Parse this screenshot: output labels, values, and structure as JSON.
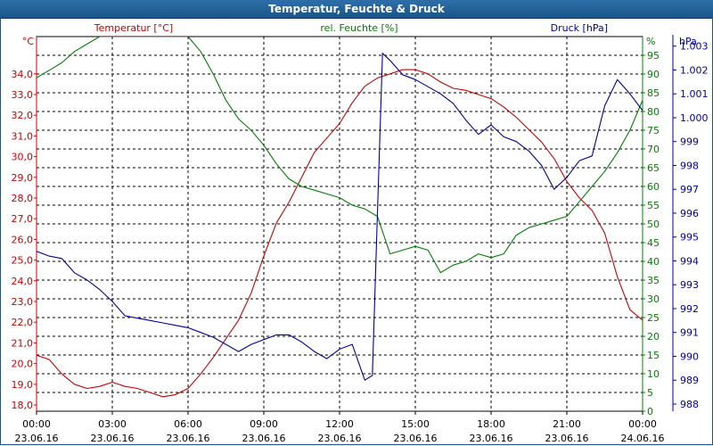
{
  "window": {
    "title": "Temperatur, Feuchte & Druck"
  },
  "colors": {
    "temperature": "#cc0000",
    "humidity": "#008000",
    "pressure": "#0000a0",
    "grid": "#000000",
    "title_bar": "#1b5488"
  },
  "chart_data": {
    "type": "line",
    "title": "Temperatur, Feuchte & Druck",
    "grid": true,
    "x_ticks": [
      {
        "time": "00:00",
        "date": "23.06.16"
      },
      {
        "time": "03:00",
        "date": "23.06.16"
      },
      {
        "time": "06:00",
        "date": "23.06.16"
      },
      {
        "time": "09:00",
        "date": "23.06.16"
      },
      {
        "time": "12:00",
        "date": "23.06.16"
      },
      {
        "time": "15:00",
        "date": "23.06.16"
      },
      {
        "time": "18:00",
        "date": "23.06.16"
      },
      {
        "time": "21:00",
        "date": "23.06.16"
      },
      {
        "time": "00:00",
        "date": "24.06.16"
      }
    ],
    "axes": {
      "temperature": {
        "label": "Temperatur [°C]",
        "unit": "°C",
        "ylim": [
          17.7,
          35.8
        ],
        "ticks": [
          "18,0",
          "19,0",
          "20,0",
          "21,0",
          "22,0",
          "23,0",
          "24,0",
          "25,0",
          "26,0",
          "27,0",
          "28,0",
          "29,0",
          "30,0",
          "31,0",
          "32,0",
          "33,0",
          "34,0"
        ]
      },
      "humidity": {
        "label": "rel. Feuchte [%]",
        "unit": "%",
        "ylim": [
          0,
          100
        ],
        "ticks": [
          "0",
          "5",
          "10",
          "15",
          "20",
          "25",
          "30",
          "35",
          "40",
          "45",
          "50",
          "55",
          "60",
          "65",
          "70",
          "75",
          "80",
          "85",
          "90",
          "95"
        ]
      },
      "pressure": {
        "label": "Druck [hPa]",
        "unit": "hPa",
        "ylim": [
          987.7,
          1003.4
        ],
        "ticks": [
          "988",
          "989",
          "990",
          "991",
          "992",
          "993",
          "994",
          "995",
          "996",
          "997",
          "998",
          "999",
          "1.000",
          "1.001",
          "1.002",
          "1.003"
        ]
      }
    },
    "series": [
      {
        "name": "Temperatur [°C]",
        "axis": "temperature",
        "x": [
          0,
          0.5,
          1.0,
          1.5,
          2.0,
          2.5,
          3.0,
          3.5,
          4.0,
          4.5,
          5.0,
          5.5,
          6.0,
          6.5,
          7.0,
          7.5,
          8.0,
          8.5,
          9.0,
          9.5,
          10.0,
          10.5,
          11.0,
          11.5,
          12.0,
          12.5,
          13.0,
          13.5,
          14.0,
          14.5,
          15.0,
          15.5,
          16.0,
          16.5,
          17.0,
          17.5,
          18.0,
          18.5,
          19.0,
          19.5,
          20.0,
          20.5,
          21.0,
          21.5,
          22.0,
          22.5,
          23.0,
          23.5,
          24.0
        ],
        "y": [
          20.4,
          20.2,
          19.5,
          19.0,
          18.8,
          18.9,
          19.1,
          18.9,
          18.8,
          18.6,
          18.4,
          18.5,
          18.8,
          19.5,
          20.3,
          21.2,
          22.1,
          23.4,
          25.2,
          26.8,
          27.8,
          29.0,
          30.2,
          30.9,
          31.6,
          32.6,
          33.4,
          33.8,
          34.0,
          34.2,
          34.2,
          34.0,
          33.6,
          33.3,
          33.2,
          33.0,
          32.8,
          32.4,
          31.9,
          31.3,
          30.7,
          29.9,
          28.8,
          28.0,
          27.4,
          26.3,
          24.2,
          22.6,
          22.1
        ]
      },
      {
        "name": "rel. Feuchte [%]",
        "axis": "humidity",
        "x": [
          0,
          0.5,
          1.0,
          1.5,
          2.0,
          2.5,
          3.0,
          3.5,
          4.0,
          4.5,
          5.0,
          5.5,
          6.0,
          6.5,
          7.0,
          7.5,
          8.0,
          8.5,
          9.0,
          9.5,
          10.0,
          10.5,
          11.0,
          11.5,
          12.0,
          12.5,
          13.0,
          13.5,
          14.0,
          14.5,
          15.0,
          15.5,
          16.0,
          16.5,
          17.0,
          17.5,
          18.0,
          18.5,
          19.0,
          19.5,
          20.0,
          20.5,
          21.0,
          21.5,
          22.0,
          22.5,
          23.0,
          23.5,
          24.0
        ],
        "y": [
          89,
          91,
          93,
          96,
          98,
          100,
          100,
          100,
          100,
          100,
          100,
          100,
          100,
          96,
          90,
          83,
          78,
          75,
          71,
          66,
          62,
          60,
          59,
          58,
          57,
          55,
          54,
          52,
          42,
          43,
          44,
          43,
          37,
          39,
          40,
          42,
          41,
          42,
          47,
          49,
          50,
          51,
          52,
          56,
          60,
          64,
          69,
          75,
          83
        ]
      },
      {
        "name": "Druck [hPa]",
        "axis": "pressure",
        "x": [
          0,
          0.5,
          1.0,
          1.5,
          2.0,
          2.5,
          3.0,
          3.5,
          4.0,
          4.5,
          5.0,
          5.5,
          6.0,
          6.5,
          7.0,
          7.5,
          8.0,
          8.5,
          9.0,
          9.5,
          10.0,
          10.5,
          11.0,
          11.5,
          12.0,
          12.5,
          13.0,
          13.3,
          13.5,
          13.7,
          14.0,
          14.5,
          15.0,
          15.5,
          16.0,
          16.5,
          17.0,
          17.5,
          18.0,
          18.5,
          19.0,
          19.5,
          20.0,
          20.5,
          21.0,
          21.5,
          22.0,
          22.5,
          23.0,
          23.5,
          24.0
        ],
        "y": [
          994.4,
          994.2,
          994.1,
          993.5,
          993.2,
          992.8,
          992.3,
          991.7,
          991.6,
          991.5,
          991.4,
          991.3,
          991.2,
          991.0,
          990.8,
          990.5,
          990.2,
          990.5,
          990.7,
          990.9,
          990.9,
          990.6,
          990.2,
          989.9,
          990.3,
          990.5,
          989.0,
          989.2,
          996.0,
          1002.7,
          1002.4,
          1001.8,
          1001.6,
          1001.3,
          1001.0,
          1000.6,
          999.9,
          999.3,
          999.7,
          999.2,
          999.0,
          998.6,
          998.0,
          997.0,
          997.5,
          998.2,
          998.4,
          1000.5,
          1001.6,
          1001.0,
          1000.3
        ]
      }
    ]
  }
}
